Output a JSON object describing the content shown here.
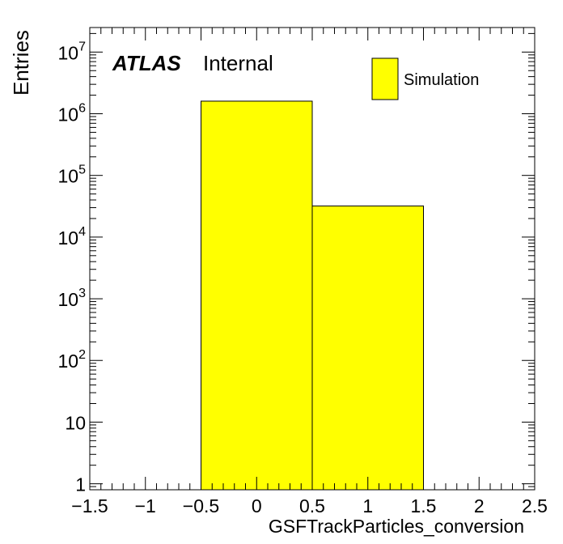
{
  "chart_data": {
    "type": "bar",
    "histogram": true,
    "ylabel": "Entries",
    "xlabel": "GSFTrackParticles_conversion",
    "log_y": true,
    "xlim": [
      -1.5,
      2.5
    ],
    "ylim": [
      0.8,
      25000000
    ],
    "bins": [
      {
        "low": -0.5,
        "high": 0.5,
        "value": 1600000
      },
      {
        "low": 0.5,
        "high": 1.5,
        "value": 32000
      }
    ],
    "fill_color": "#ffff00",
    "x_ticks": [
      {
        "value": -1.5,
        "label": "−1.5"
      },
      {
        "value": -1,
        "label": "−1"
      },
      {
        "value": -0.5,
        "label": "−0.5"
      },
      {
        "value": 0,
        "label": "0"
      },
      {
        "value": 0.5,
        "label": "0.5"
      },
      {
        "value": 1,
        "label": "1"
      },
      {
        "value": 1.5,
        "label": "1.5"
      },
      {
        "value": 2,
        "label": "2"
      },
      {
        "value": 2.5,
        "label": "2.5"
      }
    ],
    "y_ticks": [
      {
        "value": 1,
        "label": "1",
        "sup": ""
      },
      {
        "value": 10,
        "label": "10",
        "sup": ""
      },
      {
        "value": 100,
        "label": "10",
        "sup": "2"
      },
      {
        "value": 1000,
        "label": "10",
        "sup": "3"
      },
      {
        "value": 10000,
        "label": "10",
        "sup": "4"
      },
      {
        "value": 100000,
        "label": "10",
        "sup": "5"
      },
      {
        "value": 1000000,
        "label": "10",
        "sup": "6"
      },
      {
        "value": 10000000,
        "label": "10",
        "sup": "7"
      }
    ],
    "atlas_label": "ATLAS",
    "atlas_sublabel": "Internal",
    "legend": {
      "entries": [
        {
          "name": "Simulation",
          "color": "#ffff00"
        }
      ],
      "position": "top-right"
    },
    "grid": false
  }
}
